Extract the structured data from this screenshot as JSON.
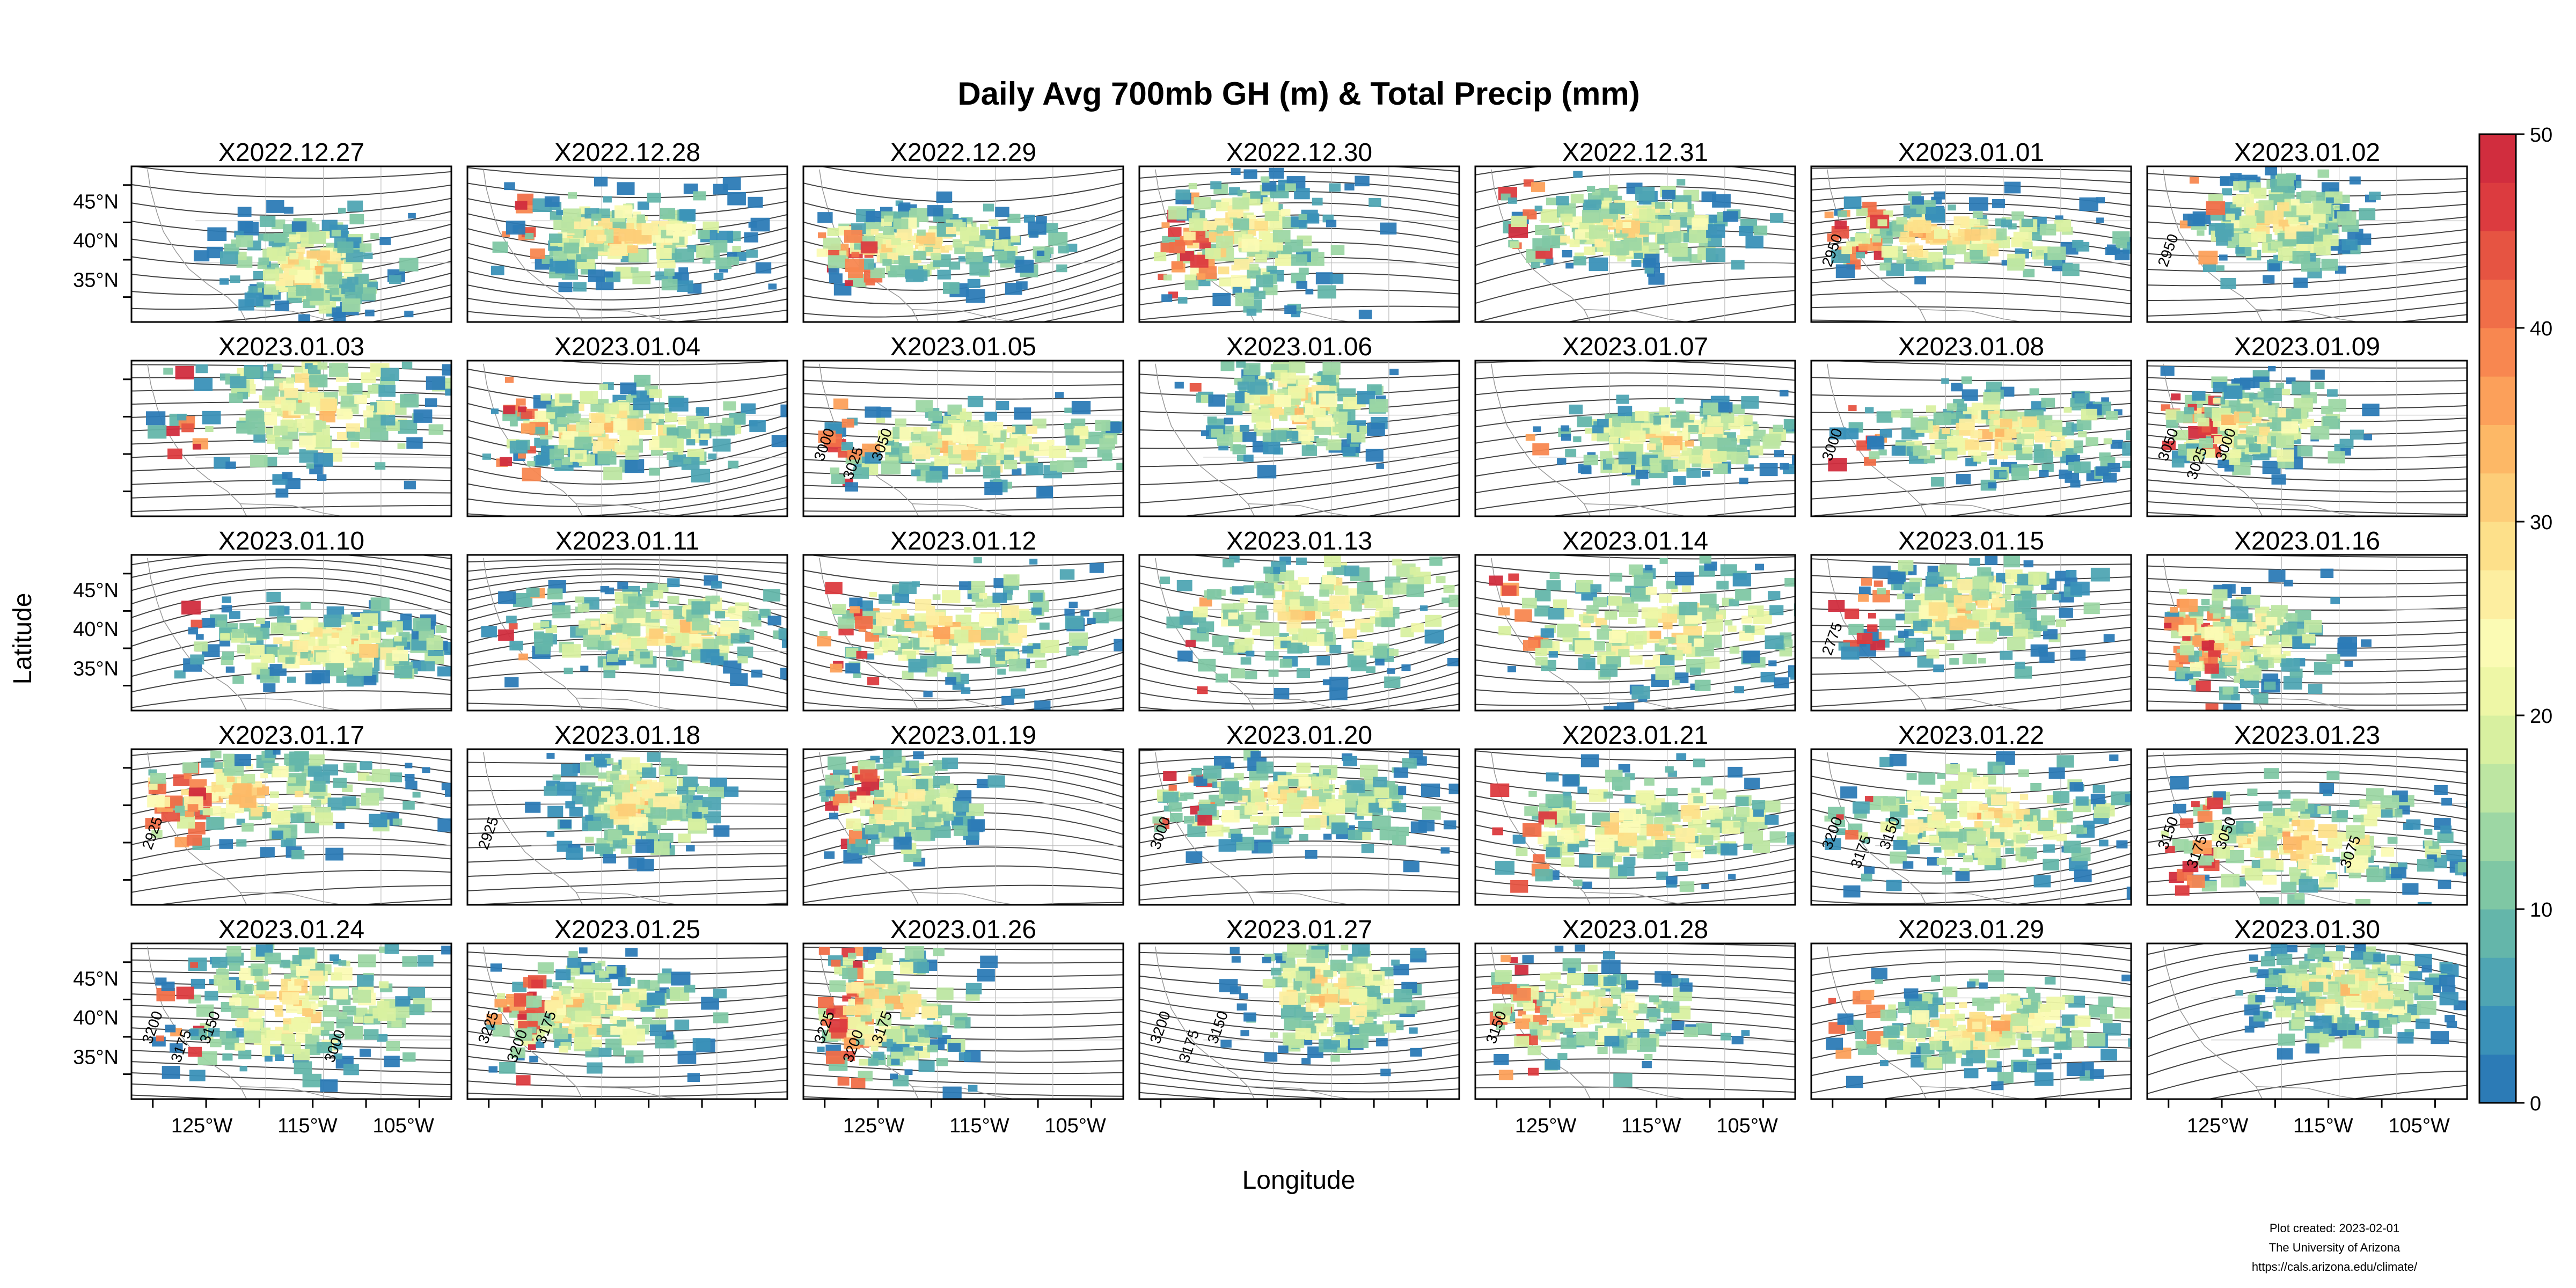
{
  "chart_data": {
    "type": "heatmap",
    "title": "Daily Avg 700mb GH (m) & Total Precip (mm)",
    "xlabel": "Longitude",
    "ylabel": "Latitude",
    "x_ticks": [
      "125°W",
      "115°W",
      "105°W"
    ],
    "y_ticks": [
      "45°N",
      "40°N",
      "35°N"
    ],
    "colorbar": {
      "min": 0,
      "max": 50,
      "ticks": [
        0,
        10,
        20,
        30,
        40,
        50
      ],
      "colors": [
        "#2c7bb6",
        "#3a91b8",
        "#4fa5b3",
        "#64b6aa",
        "#7fc7a4",
        "#9dd7a4",
        "#bde6a2",
        "#d8f0a0",
        "#eef7a6",
        "#fbfbb4",
        "#fdeea0",
        "#fde08a",
        "#fdcd78",
        "#fdb866",
        "#fca05a",
        "#f88750",
        "#f06e48",
        "#e65442",
        "#dc3b3f",
        "#d12d3e"
      ]
    },
    "panels": [
      {
        "label": "X2022.12.27",
        "contour_labels": []
      },
      {
        "label": "X2022.12.28",
        "contour_labels": []
      },
      {
        "label": "X2022.12.29",
        "contour_labels": []
      },
      {
        "label": "X2022.12.30",
        "contour_labels": []
      },
      {
        "label": "X2022.12.31",
        "contour_labels": []
      },
      {
        "label": "X2023.01.01",
        "contour_labels": [
          "2950"
        ]
      },
      {
        "label": "X2023.01.02",
        "contour_labels": [
          "2950"
        ]
      },
      {
        "label": "X2023.01.03",
        "contour_labels": []
      },
      {
        "label": "X2023.01.04",
        "contour_labels": []
      },
      {
        "label": "X2023.01.05",
        "contour_labels": [
          "3000",
          "3025",
          "3050"
        ]
      },
      {
        "label": "X2023.01.06",
        "contour_labels": []
      },
      {
        "label": "X2023.01.07",
        "contour_labels": []
      },
      {
        "label": "X2023.01.08",
        "contour_labels": [
          "3000"
        ]
      },
      {
        "label": "X2023.01.09",
        "contour_labels": [
          "3050",
          "3025",
          "3000"
        ]
      },
      {
        "label": "X2023.01.10",
        "contour_labels": []
      },
      {
        "label": "X2023.01.11",
        "contour_labels": []
      },
      {
        "label": "X2023.01.12",
        "contour_labels": []
      },
      {
        "label": "X2023.01.13",
        "contour_labels": []
      },
      {
        "label": "X2023.01.14",
        "contour_labels": []
      },
      {
        "label": "X2023.01.15",
        "contour_labels": [
          "2775"
        ]
      },
      {
        "label": "X2023.01.16",
        "contour_labels": []
      },
      {
        "label": "X2023.01.17",
        "contour_labels": [
          "2925"
        ]
      },
      {
        "label": "X2023.01.18",
        "contour_labels": [
          "2925"
        ]
      },
      {
        "label": "X2023.01.19",
        "contour_labels": []
      },
      {
        "label": "X2023.01.20",
        "contour_labels": [
          "3000"
        ]
      },
      {
        "label": "X2023.01.21",
        "contour_labels": []
      },
      {
        "label": "X2023.01.22",
        "contour_labels": [
          "3200",
          "3175",
          "3150"
        ]
      },
      {
        "label": "X2023.01.23",
        "contour_labels": [
          "3150",
          "3175",
          "3050",
          "3075"
        ]
      },
      {
        "label": "X2023.01.24",
        "contour_labels": [
          "3200",
          "3175",
          "3150",
          "3000"
        ]
      },
      {
        "label": "X2023.01.25",
        "contour_labels": [
          "3225",
          "3200",
          "3175"
        ]
      },
      {
        "label": "X2023.01.26",
        "contour_labels": [
          "3225",
          "3200",
          "3175"
        ]
      },
      {
        "label": "X2023.01.27",
        "contour_labels": [
          "3200",
          "3175",
          "3150"
        ]
      },
      {
        "label": "X2023.01.28",
        "contour_labels": [
          "3150"
        ]
      },
      {
        "label": "X2023.01.29",
        "contour_labels": []
      },
      {
        "label": "X2023.01.30",
        "contour_labels": []
      }
    ]
  },
  "credits": {
    "line1": "Plot created: 2023-02-01",
    "line2": "The University of Arizona",
    "line3": "https://cals.arizona.edu/climate/"
  }
}
